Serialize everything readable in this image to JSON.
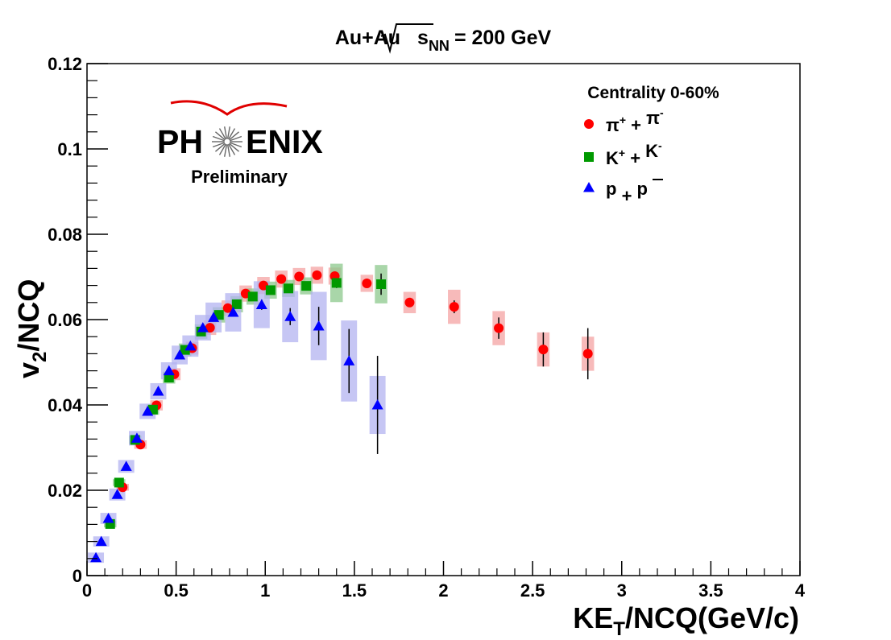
{
  "chart_data": {
    "type": "scatter",
    "title_prefix": "Au+Au",
    "title_sqrt_var": "s",
    "title_sqrt_sub": "NN",
    "title_suffix": "= 200 GeV",
    "xlabel_prefix": "KE",
    "xlabel_sub": "T",
    "xlabel_suffix": "/NCQ(GeV/c)",
    "ylabel_prefix": "v",
    "ylabel_sub": "2",
    "ylabel_suffix": "/NCQ",
    "xlim": [
      0,
      4
    ],
    "ylim": [
      0,
      0.12
    ],
    "xticks": [
      0,
      0.5,
      1,
      1.5,
      2,
      2.5,
      3,
      3.5,
      4
    ],
    "xtick_labels": [
      "0",
      "0.5",
      "1",
      "1.5",
      "2",
      "2.5",
      "3",
      "3.5",
      "4"
    ],
    "yticks": [
      0,
      0.02,
      0.04,
      0.06,
      0.08,
      0.1,
      0.12
    ],
    "ytick_labels": [
      "0",
      "0.02",
      "0.04",
      "0.06",
      "0.08",
      "0.1",
      "0.12"
    ],
    "legend_title": "Centrality 0-60%",
    "logo_text_left": "PH",
    "logo_text_right": "ENIX",
    "logo_subtitle": "Preliminary",
    "series": [
      {
        "name": "pi",
        "legend_base1": "π",
        "legend_sup1": "+",
        "legend_mid": " + ",
        "legend_base2": "π",
        "legend_sup2": "-",
        "marker": "circle",
        "color": "#ff0000",
        "box_color": "#f4a3a3",
        "box_dx": 0.035,
        "points": [
          {
            "x": 0.2,
            "y": 0.0207,
            "err": 0.0004,
            "sys": 0.0008
          },
          {
            "x": 0.3,
            "y": 0.0307,
            "err": 0.0004,
            "sys": 0.001
          },
          {
            "x": 0.39,
            "y": 0.0399,
            "err": 0.0004,
            "sys": 0.0012
          },
          {
            "x": 0.49,
            "y": 0.0472,
            "err": 0.0004,
            "sys": 0.0014
          },
          {
            "x": 0.59,
            "y": 0.0533,
            "err": 0.0004,
            "sys": 0.0015
          },
          {
            "x": 0.69,
            "y": 0.0581,
            "err": 0.0004,
            "sys": 0.0017
          },
          {
            "x": 0.79,
            "y": 0.0627,
            "err": 0.0004,
            "sys": 0.0018
          },
          {
            "x": 0.89,
            "y": 0.0661,
            "err": 0.0004,
            "sys": 0.0019
          },
          {
            "x": 0.99,
            "y": 0.068,
            "err": 0.0004,
            "sys": 0.002
          },
          {
            "x": 1.09,
            "y": 0.0695,
            "err": 0.0004,
            "sys": 0.002
          },
          {
            "x": 1.19,
            "y": 0.0701,
            "err": 0.0004,
            "sys": 0.002
          },
          {
            "x": 1.29,
            "y": 0.0704,
            "err": 0.0004,
            "sys": 0.002
          },
          {
            "x": 1.39,
            "y": 0.0702,
            "err": 0.0005,
            "sys": 0.002
          },
          {
            "x": 1.57,
            "y": 0.0685,
            "err": 0.0006,
            "sys": 0.002
          },
          {
            "x": 1.81,
            "y": 0.064,
            "err": 0.0008,
            "sys": 0.0025
          },
          {
            "x": 2.06,
            "y": 0.063,
            "err": 0.0015,
            "sys": 0.004
          },
          {
            "x": 2.31,
            "y": 0.058,
            "err": 0.0025,
            "sys": 0.004
          },
          {
            "x": 2.56,
            "y": 0.053,
            "err": 0.004,
            "sys": 0.004
          },
          {
            "x": 2.81,
            "y": 0.052,
            "err": 0.006,
            "sys": 0.004
          }
        ]
      },
      {
        "name": "K",
        "legend_base1": "K",
        "legend_sup1": "+",
        "legend_mid": " + ",
        "legend_base2": "K",
        "legend_sup2": "-",
        "marker": "square",
        "color": "#009900",
        "box_color": "#8cc88c",
        "box_dx": 0.035,
        "points": [
          {
            "x": 0.13,
            "y": 0.0121,
            "err": 0.0004,
            "sys": 0.0008
          },
          {
            "x": 0.18,
            "y": 0.0218,
            "err": 0.0004,
            "sys": 0.0008
          },
          {
            "x": 0.27,
            "y": 0.0318,
            "err": 0.0004,
            "sys": 0.001
          },
          {
            "x": 0.37,
            "y": 0.0389,
            "err": 0.0004,
            "sys": 0.0012
          },
          {
            "x": 0.46,
            "y": 0.0464,
            "err": 0.0004,
            "sys": 0.0014
          },
          {
            "x": 0.55,
            "y": 0.0529,
            "err": 0.0004,
            "sys": 0.0015
          },
          {
            "x": 0.64,
            "y": 0.0572,
            "err": 0.0004,
            "sys": 0.0017
          },
          {
            "x": 0.74,
            "y": 0.0611,
            "err": 0.0004,
            "sys": 0.0018
          },
          {
            "x": 0.84,
            "y": 0.0636,
            "err": 0.0004,
            "sys": 0.0019
          },
          {
            "x": 0.93,
            "y": 0.0654,
            "err": 0.0004,
            "sys": 0.0019
          },
          {
            "x": 1.03,
            "y": 0.0669,
            "err": 0.0004,
            "sys": 0.002
          },
          {
            "x": 1.13,
            "y": 0.0673,
            "err": 0.0005,
            "sys": 0.002
          },
          {
            "x": 1.23,
            "y": 0.0679,
            "err": 0.0006,
            "sys": 0.002
          },
          {
            "x": 1.4,
            "y": 0.0686,
            "err": 0.0012,
            "sys": 0.0045
          },
          {
            "x": 1.65,
            "y": 0.0683,
            "err": 0.0025,
            "sys": 0.0045
          }
        ]
      },
      {
        "name": "p",
        "legend_base1": "p",
        "legend_sup1": "",
        "legend_mid": " + ",
        "legend_base2": "p",
        "legend_sup2": "",
        "legend_bar2": true,
        "marker": "triangle",
        "color": "#0000ff",
        "box_color": "#b3b3f0",
        "box_dx": 0.045,
        "points": [
          {
            "x": 0.05,
            "y": 0.0042,
            "err": 0.0004,
            "sys": 0.0012
          },
          {
            "x": 0.08,
            "y": 0.008,
            "err": 0.0004,
            "sys": 0.0012
          },
          {
            "x": 0.12,
            "y": 0.0134,
            "err": 0.0004,
            "sys": 0.0013
          },
          {
            "x": 0.17,
            "y": 0.019,
            "err": 0.0004,
            "sys": 0.0014
          },
          {
            "x": 0.22,
            "y": 0.0256,
            "err": 0.0004,
            "sys": 0.0015
          },
          {
            "x": 0.28,
            "y": 0.0322,
            "err": 0.0004,
            "sys": 0.0017
          },
          {
            "x": 0.34,
            "y": 0.0385,
            "err": 0.0004,
            "sys": 0.0018
          },
          {
            "x": 0.4,
            "y": 0.0432,
            "err": 0.0004,
            "sys": 0.0019
          },
          {
            "x": 0.46,
            "y": 0.048,
            "err": 0.0004,
            "sys": 0.002
          },
          {
            "x": 0.52,
            "y": 0.0517,
            "err": 0.0004,
            "sys": 0.0022
          },
          {
            "x": 0.58,
            "y": 0.0538,
            "err": 0.0004,
            "sys": 0.0025
          },
          {
            "x": 0.65,
            "y": 0.0581,
            "err": 0.0005,
            "sys": 0.003
          },
          {
            "x": 0.71,
            "y": 0.0605,
            "err": 0.0005,
            "sys": 0.0035
          },
          {
            "x": 0.82,
            "y": 0.0617,
            "err": 0.0008,
            "sys": 0.0045
          },
          {
            "x": 0.98,
            "y": 0.0635,
            "err": 0.0012,
            "sys": 0.0055
          },
          {
            "x": 1.14,
            "y": 0.0607,
            "err": 0.002,
            "sys": 0.006
          },
          {
            "x": 1.3,
            "y": 0.0585,
            "err": 0.0045,
            "sys": 0.008
          },
          {
            "x": 1.47,
            "y": 0.0503,
            "err": 0.0075,
            "sys": 0.0095
          },
          {
            "x": 1.63,
            "y": 0.04,
            "err": 0.0115,
            "sys": 0.0068
          }
        ]
      }
    ]
  }
}
